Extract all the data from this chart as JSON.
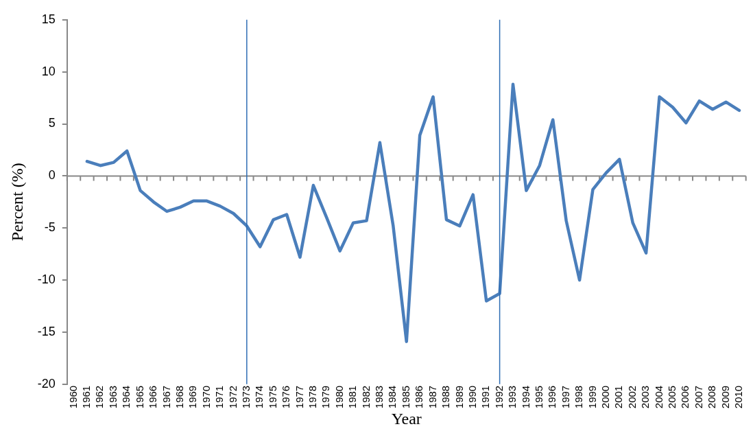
{
  "chart_data": {
    "type": "line",
    "xlabel": "Year",
    "ylabel": "Percent (%)",
    "categories": [
      "1960",
      "1961",
      "1962",
      "1963",
      "1964",
      "1965",
      "1966",
      "1967",
      "1968",
      "1969",
      "1970",
      "1971",
      "1972",
      "1973",
      "1974",
      "1975",
      "1976",
      "1977",
      "1978",
      "1979",
      "1980",
      "1981",
      "1982",
      "1983",
      "1984",
      "1985",
      "1986",
      "1987",
      "1988",
      "1989",
      "1990",
      "1991",
      "1992",
      "1993",
      "1994",
      "1995",
      "1996",
      "1997",
      "1998",
      "1999",
      "2000",
      "2001",
      "2002",
      "2003",
      "2004",
      "2005",
      "2006",
      "2007",
      "2008",
      "2009",
      "2010"
    ],
    "series": [
      {
        "color": "#4a7ebb",
        "values": [
          null,
          1.4,
          1.0,
          1.3,
          2.4,
          -1.4,
          -2.5,
          -3.4,
          -3.0,
          -2.4,
          -2.4,
          -2.9,
          -3.6,
          -4.8,
          -6.8,
          -4.2,
          -3.7,
          -7.8,
          -0.9,
          -4.0,
          -7.2,
          -4.5,
          -4.3,
          3.2,
          -4.8,
          -15.9,
          3.9,
          7.6,
          -4.2,
          -4.8,
          -1.8,
          -12.0,
          -11.3,
          8.8,
          -1.4,
          1.0,
          5.4,
          -4.3,
          -10.0,
          -1.3,
          0.3,
          1.6,
          -4.5,
          -7.4,
          7.6,
          6.6,
          5.1,
          7.2,
          6.4,
          7.1,
          6.3
        ]
      }
    ],
    "ylim": [
      -20,
      15
    ],
    "yticks": [
      -20,
      -15,
      -10,
      -5,
      0,
      5,
      10,
      15
    ],
    "grid": false,
    "legend": false,
    "marker": "none",
    "line_style": "solid",
    "ref_lines": [
      {
        "axis": "x",
        "value": "1973",
        "color": "#2e6db4"
      },
      {
        "axis": "x",
        "value": "1992",
        "color": "#2e6db4"
      }
    ]
  }
}
